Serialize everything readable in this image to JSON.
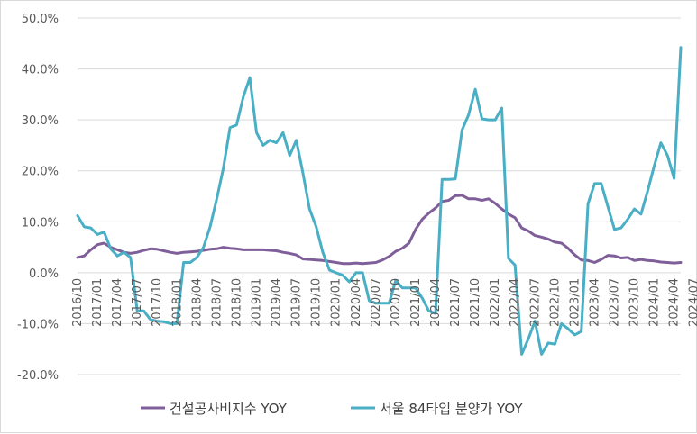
{
  "chart_data": {
    "type": "line",
    "title": "",
    "xlabel": "",
    "ylabel": "",
    "ylim": [
      -20,
      50
    ],
    "y_ticks": [
      "50.0%",
      "40.0%",
      "30.0%",
      "20.0%",
      "10.0%",
      "0.0%",
      "-10.0%",
      "-20.0%"
    ],
    "y_tick_values": [
      50,
      40,
      30,
      20,
      10,
      0,
      -10,
      -20
    ],
    "x_tick_labels": [
      "2016/10",
      "2017/01",
      "2017/04",
      "2017/07",
      "2017/10",
      "2018/01",
      "2018/04",
      "2018/07",
      "2018/10",
      "2019/01",
      "2019/04",
      "2019/07",
      "2019/10",
      "2020/01",
      "2020/04",
      "2020/07",
      "2020/10",
      "2021/01",
      "2021/04",
      "2021/07",
      "2021/10",
      "2022/01",
      "2022/04",
      "2022/07",
      "2022/10",
      "2023/01",
      "2023/04",
      "2023/07",
      "2023/10",
      "2024/01",
      "2024/04",
      "2024/07"
    ],
    "grid": "horizontal",
    "legend_position": "bottom",
    "series": [
      {
        "name": "건설공사비지수 YOY",
        "color": "#7f5f9a",
        "values": [
          3.0,
          3.3,
          4.5,
          5.5,
          5.8,
          5.0,
          4.5,
          4.0,
          3.8,
          4.0,
          4.4,
          4.7,
          4.6,
          4.3,
          4.0,
          3.8,
          4.0,
          4.1,
          4.2,
          4.4,
          4.6,
          4.7,
          5.0,
          4.8,
          4.7,
          4.5,
          4.5,
          4.5,
          4.5,
          4.4,
          4.3,
          4.0,
          3.8,
          3.5,
          2.7,
          2.6,
          2.5,
          2.4,
          2.2,
          2.0,
          1.8,
          1.8,
          1.9,
          1.8,
          1.9,
          2.0,
          2.5,
          3.2,
          4.2,
          4.8,
          5.8,
          8.5,
          10.5,
          11.7,
          12.7,
          14.0,
          14.2,
          15.1,
          15.2,
          14.5,
          14.5,
          14.2,
          14.5,
          13.6,
          12.5,
          11.5,
          10.8,
          8.8,
          8.2,
          7.3,
          7.0,
          6.6,
          6.0,
          5.8,
          4.8,
          3.5,
          2.5,
          2.4,
          2.0,
          2.6,
          3.4,
          3.3,
          2.9,
          3.0,
          2.4,
          2.6,
          2.4,
          2.3,
          2.1,
          2.0,
          1.9,
          2.0
        ]
      },
      {
        "name": "서울 84타입 분양가 YOY",
        "color": "#4aaec4",
        "values": [
          11.2,
          9.0,
          8.8,
          7.5,
          8.0,
          4.7,
          3.3,
          4.0,
          3.0,
          -7.5,
          -7.5,
          -9.2,
          -9.5,
          -9.6,
          -10.0,
          -10.0,
          2.0,
          2.0,
          3.0,
          5.0,
          9.0,
          14.5,
          20.5,
          28.5,
          29.0,
          34.5,
          38.3,
          27.5,
          25.0,
          26.0,
          25.5,
          27.5,
          23.0,
          26.0,
          19.5,
          12.5,
          9.0,
          4.0,
          0.5,
          0.0,
          -0.5,
          -1.8,
          0.0,
          0.0,
          -5.5,
          -6.0,
          -6.0,
          -6.0,
          -1.5,
          -3.0,
          -3.0,
          -3.0,
          -5.0,
          -7.5,
          -8.0,
          18.3,
          18.3,
          18.4,
          28.0,
          31.0,
          36.0,
          30.2,
          30.0,
          30.0,
          32.3,
          2.8,
          1.5,
          -16.0,
          -13.0,
          -9.5,
          -16.0,
          -13.8,
          -14.0,
          -10.0,
          -11.0,
          -12.2,
          -11.5,
          13.5,
          17.5,
          17.5,
          13.0,
          8.5,
          8.8,
          10.5,
          12.5,
          11.5,
          16.0,
          21.0,
          25.5,
          23.0,
          18.5,
          44.2
        ]
      }
    ]
  }
}
